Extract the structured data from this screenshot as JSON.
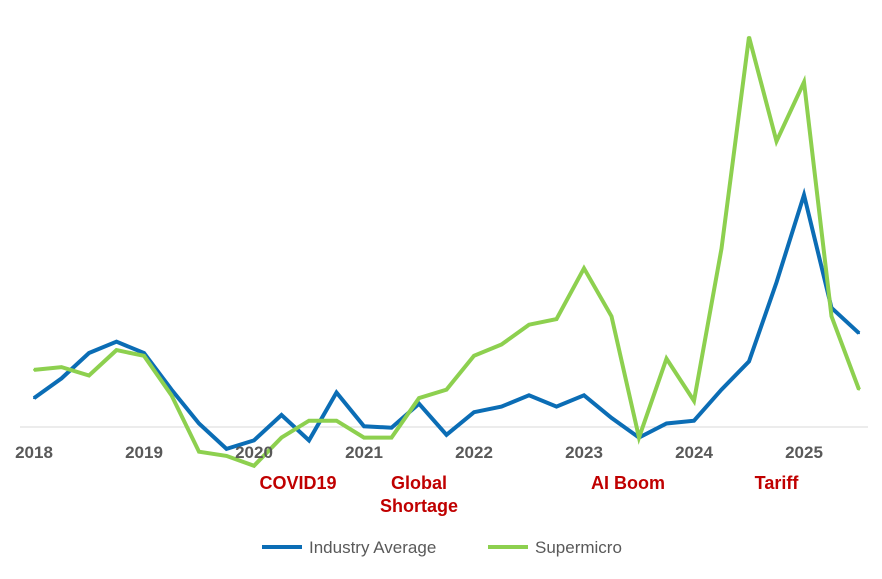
{
  "chart_data": {
    "type": "line",
    "title": "",
    "xlabel": "",
    "ylabel": "",
    "x_ticks": [
      "2018",
      "2019",
      "2020",
      "2021",
      "2022",
      "2023",
      "2024",
      "2025"
    ],
    "x": [
      2018.0,
      2018.25,
      2018.5,
      2018.75,
      2019.0,
      2019.25,
      2019.5,
      2019.75,
      2020.0,
      2020.25,
      2020.5,
      2020.75,
      2021.0,
      2021.25,
      2021.5,
      2021.75,
      2022.0,
      2022.25,
      2022.5,
      2022.75,
      2023.0,
      2023.25,
      2023.5,
      2023.75,
      2024.0,
      2024.25,
      2024.5,
      2024.75,
      2025.0,
      2025.25,
      2025.5
    ],
    "ylim": [
      -0.12,
      1.45
    ],
    "grid": false,
    "legend": "bottom",
    "series": [
      {
        "name": "Industry Average",
        "color": "#0b6db5",
        "values": [
          0.11,
          0.18,
          0.27,
          0.31,
          0.27,
          0.14,
          0.02,
          -0.07,
          -0.04,
          0.05,
          -0.04,
          0.13,
          0.01,
          0.005,
          0.09,
          -0.02,
          0.06,
          0.08,
          0.12,
          0.08,
          0.12,
          0.04,
          -0.03,
          0.02,
          0.03,
          0.14,
          0.24,
          0.52,
          0.83,
          0.43,
          0.34
        ]
      },
      {
        "name": "Supermicro",
        "color": "#8dd04f",
        "values": [
          0.21,
          0.22,
          0.19,
          0.28,
          0.26,
          0.12,
          -0.08,
          -0.095,
          -0.13,
          -0.03,
          0.03,
          0.03,
          -0.03,
          -0.03,
          0.11,
          0.14,
          0.26,
          0.3,
          0.37,
          0.39,
          0.57,
          0.4,
          -0.03,
          0.25,
          0.1,
          0.64,
          1.39,
          1.02,
          1.23,
          0.4,
          0.14
        ]
      }
    ],
    "annotations": [
      {
        "x": 2020.4,
        "lines": [
          "COVID19"
        ]
      },
      {
        "x": 2021.5,
        "lines": [
          "Global",
          "Shortage"
        ]
      },
      {
        "x": 2023.4,
        "lines": [
          "AI Boom"
        ]
      },
      {
        "x": 2024.75,
        "lines": [
          "Tariff"
        ]
      }
    ],
    "annotation_color": "#c00000"
  }
}
